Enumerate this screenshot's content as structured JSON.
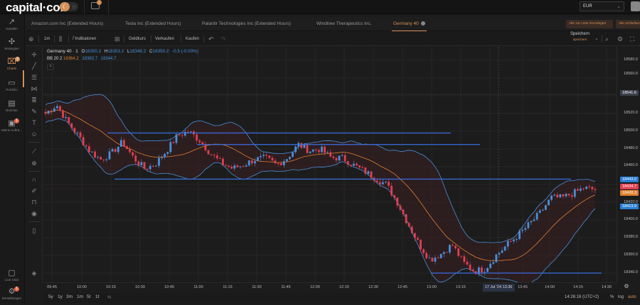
{
  "header": {
    "logo": "capital·com",
    "currency": "EUR",
    "mail_badge": ""
  },
  "sidebar": {
    "items": [
      {
        "label": "Handeln",
        "icon": "trade-icon"
      },
      {
        "label": "Strategien",
        "icon": "strategies-icon"
      },
      {
        "label": "Charts",
        "icon": "charts-icon",
        "active": true,
        "badge": "3"
      },
      {
        "label": "Portfolio",
        "icon": "portfolio-icon"
      },
      {
        "label": "Berichte",
        "icon": "reports-icon"
      },
      {
        "label": "Meine Aufträ...",
        "icon": "orders-icon",
        "badge": "1"
      },
      {
        "label": "Live Chat",
        "icon": "chat-icon"
      },
      {
        "label": "Einstellungen",
        "icon": "settings-icon",
        "badge": "1"
      }
    ]
  },
  "tabs": {
    "items": [
      {
        "label": "Amazon.com Inc (Extended Hours)"
      },
      {
        "label": "Tesla Inc (Extended Hours)"
      },
      {
        "label": "Palantir Technologies Inc (Extended Hours)"
      },
      {
        "label": "Windtree Therapeutics Inc."
      },
      {
        "label": "Germany 40",
        "active": true
      }
    ],
    "add_all_label": "Alle zur Liste hinzufügen",
    "close_all_label": "Alle schließen"
  },
  "toolbar": {
    "interval": "1m",
    "indicators": "Indikatoren",
    "bid": "Geldkurs",
    "sell": "Verkaufen",
    "buy": "Kaufen",
    "save": "Speichern",
    "save_sub": "speichern"
  },
  "legend": {
    "title": "Germany 40 · 1",
    "o_key": "O",
    "o": "18350.2",
    "h_key": "H",
    "h": "18353.2",
    "l_key": "L",
    "l": "18348.2",
    "c_key": "C",
    "c": "18350.2",
    "change": "-0.5 (-0.00%)",
    "bb_label": "BB 20 2",
    "bb_mid": "18364.2",
    "bb_upper": "18383.7",
    "bb_lower": "18344.7"
  },
  "yaxis": {
    "labels": [
      "18580.0",
      "18560.0",
      "18520.0",
      "18500.0",
      "18480.0",
      "18460.0",
      "18420.0",
      "18400.0",
      "18380.0",
      "18360.0",
      "18340.0"
    ],
    "tags": [
      {
        "value": "18541.6",
        "color": "#3a3f4a"
      },
      {
        "value": "18443.0",
        "color": "#2a7fd4"
      },
      {
        "value": "18434.7",
        "color": "#e04050"
      },
      {
        "value": "18428.3",
        "color": "#e0812e"
      },
      {
        "value": "18413.9",
        "color": "#2a7fd4"
      }
    ]
  },
  "xaxis": {
    "labels": [
      "09:45",
      "10:00",
      "10:15",
      "10:30",
      "10:45",
      "11:00",
      "11:15",
      "11:30",
      "11:45",
      "12:00",
      "12:15",
      "12:30",
      "12:45",
      "13:00",
      "13:15",
      "13:45",
      "14:00",
      "14:15",
      "14:30"
    ],
    "cursor": "17 Jul '24   13:36"
  },
  "bottombar": {
    "ranges": [
      "5y",
      "1y",
      "3m",
      "1m",
      "5t",
      "1t"
    ],
    "time": "14:26:18 (UTC+2)",
    "percent": "%",
    "log": "log",
    "auto": "auto"
  },
  "colors": {
    "up": "#4a90d9",
    "down": "#e04050",
    "bb_mid": "#e0812e",
    "bb_band": "#4a90d9",
    "hline": "#3a6ee0",
    "accent": "#d4915a"
  },
  "chart_data": {
    "type": "candlestick",
    "title": "Germany 40 · 1",
    "ylim": [
      18330,
      18590
    ],
    "horizontal_lines": [
      {
        "y": 18498,
        "x_from": "10:00",
        "x_to": "13:15"
      },
      {
        "y": 18485,
        "x_from": "11:00",
        "x_to": "13:30"
      },
      {
        "y": 18446,
        "x_from": "10:00",
        "x_to": "14:00"
      },
      {
        "y": 18340,
        "x_from": "13:00",
        "x_to": "14:30"
      }
    ],
    "close_path": [
      18520,
      18530,
      18510,
      18495,
      18478,
      18468,
      18475,
      18488,
      18470,
      18458,
      18463,
      18478,
      18495,
      18500,
      18490,
      18475,
      18464,
      18458,
      18462,
      18468,
      18470,
      18462,
      18470,
      18485,
      18478,
      18480,
      18470,
      18470,
      18462,
      18455,
      18447,
      18440,
      18420,
      18395,
      18372,
      18355,
      18362,
      18372,
      18352,
      18342,
      18345,
      18360,
      18372,
      18383,
      18395,
      18408,
      18425,
      18425,
      18430,
      18436,
      18434
    ]
  }
}
